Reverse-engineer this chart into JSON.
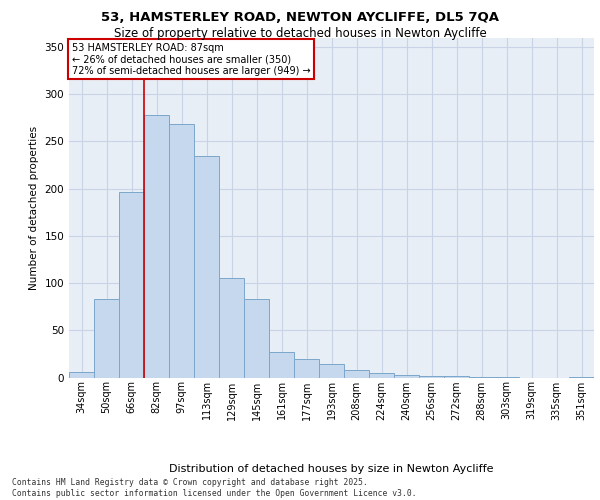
{
  "title1": "53, HAMSTERLEY ROAD, NEWTON AYCLIFFE, DL5 7QA",
  "title2": "Size of property relative to detached houses in Newton Aycliffe",
  "xlabel": "Distribution of detached houses by size in Newton Aycliffe",
  "ylabel": "Number of detached properties",
  "categories": [
    "34sqm",
    "50sqm",
    "66sqm",
    "82sqm",
    "97sqm",
    "113sqm",
    "129sqm",
    "145sqm",
    "161sqm",
    "177sqm",
    "193sqm",
    "208sqm",
    "224sqm",
    "240sqm",
    "256sqm",
    "272sqm",
    "288sqm",
    "303sqm",
    "319sqm",
    "335sqm",
    "351sqm"
  ],
  "values": [
    6,
    83,
    196,
    278,
    268,
    235,
    105,
    83,
    27,
    20,
    14,
    8,
    5,
    3,
    2,
    2,
    1,
    1,
    0,
    0,
    1
  ],
  "bar_color": "#c5d8ed",
  "bar_edge_color": "#7ba7cb",
  "grid_color": "#c8d4e5",
  "bg_color": "#e8eef6",
  "red_line_x": 2.5,
  "annotation_text_line1": "53 HAMSTERLEY ROAD: 87sqm",
  "annotation_text_line2": "← 26% of detached houses are smaller (350)",
  "annotation_text_line3": "72% of semi-detached houses are larger (949) →",
  "ylim": [
    0,
    360
  ],
  "yticks": [
    0,
    50,
    100,
    150,
    200,
    250,
    300,
    350
  ],
  "footer1": "Contains HM Land Registry data © Crown copyright and database right 2025.",
  "footer2": "Contains public sector information licensed under the Open Government Licence v3.0."
}
